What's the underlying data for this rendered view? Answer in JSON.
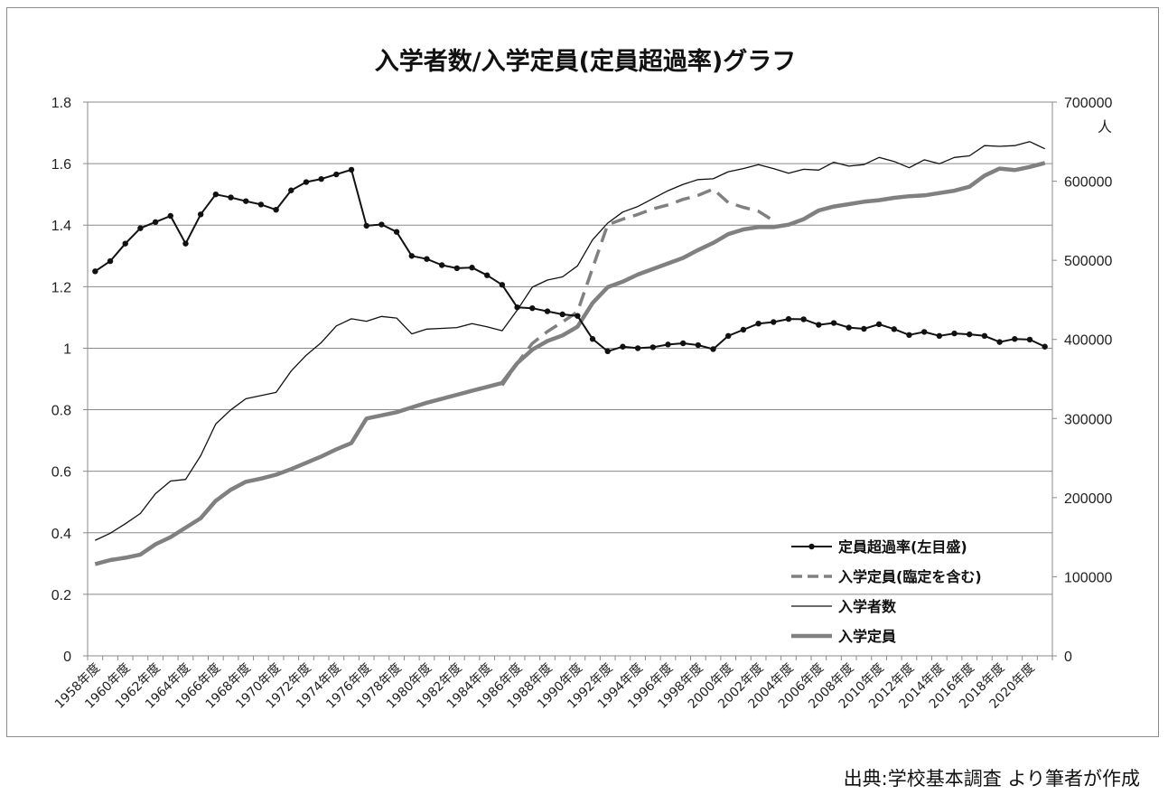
{
  "source_note": "出典:学校基本調査 より筆者が作成",
  "chart_data": {
    "type": "line",
    "title": "入学者数/入学定員(定員超過率)グラフ",
    "y_left": {
      "ylim": [
        0,
        1.8
      ],
      "ticks": [
        "0",
        "0.2",
        "0.4",
        "0.6",
        "0.8",
        "1",
        "1.2",
        "1.4",
        "1.6",
        "1.8"
      ]
    },
    "y_right": {
      "ylim": [
        0,
        700000
      ],
      "unit": "人",
      "ticks": [
        "0",
        "100000",
        "200000",
        "300000",
        "400000",
        "500000",
        "600000",
        "700000"
      ]
    },
    "x_tick_labels": [
      "1958年度",
      "1960年度",
      "1962年度",
      "1964年度",
      "1966年度",
      "1968年度",
      "1970年度",
      "1972年度",
      "1974年度",
      "1976年度",
      "1978年度",
      "1980年度",
      "1982年度",
      "1984年度",
      "1986年度",
      "1988年度",
      "1990年度",
      "1992年度",
      "1994年度",
      "1996年度",
      "1998年度",
      "2000年度",
      "2002年度",
      "2004年度",
      "2006年度",
      "2008年度",
      "2010年度",
      "2012年度",
      "2014年度",
      "2016年度",
      "2018年度",
      "2020年度"
    ],
    "x_years": [
      1958,
      1959,
      1960,
      1961,
      1962,
      1963,
      1964,
      1965,
      1966,
      1967,
      1968,
      1969,
      1970,
      1971,
      1972,
      1973,
      1974,
      1975,
      1976,
      1977,
      1978,
      1979,
      1980,
      1981,
      1982,
      1983,
      1984,
      1985,
      1986,
      1987,
      1988,
      1989,
      1990,
      1991,
      1992,
      1993,
      1994,
      1995,
      1996,
      1997,
      1998,
      1999,
      2000,
      2001,
      2002,
      2003,
      2004,
      2005,
      2006,
      2007,
      2008,
      2009,
      2010,
      2011,
      2012,
      2013,
      2014,
      2015,
      2016,
      2017,
      2018,
      2019,
      2020,
      2021
    ],
    "grid": true,
    "legend_position": "bottom-right",
    "series": [
      {
        "name": "定員超過率(左目盛)",
        "axis": "left",
        "style": "line-marker",
        "color": "#111111",
        "start_year": 1958,
        "values": [
          1.25,
          1.283,
          1.34,
          1.39,
          1.41,
          1.43,
          1.34,
          1.435,
          1.5,
          1.49,
          1.478,
          1.467,
          1.45,
          1.513,
          1.54,
          1.55,
          1.565,
          1.58,
          1.398,
          1.402,
          1.378,
          1.3,
          1.29,
          1.27,
          1.26,
          1.262,
          1.237,
          1.206,
          1.133,
          1.13,
          1.12,
          1.11,
          1.105,
          1.03,
          0.99,
          1.005,
          1.0,
          1.003,
          1.012,
          1.016,
          1.01,
          0.997,
          1.04,
          1.06,
          1.08,
          1.085,
          1.095,
          1.094,
          1.076,
          1.082,
          1.067,
          1.063,
          1.078,
          1.062,
          1.043,
          1.053,
          1.04,
          1.048,
          1.045,
          1.04,
          1.02,
          1.03,
          1.028,
          1.005
        ]
      },
      {
        "name": "入学定員(臨定を含む)",
        "axis": "right",
        "style": "dashed",
        "color": "#808080",
        "start_year": 1985,
        "values": [
          342000,
          370000,
          395000,
          410000,
          422000,
          435000,
          490000,
          545000,
          552000,
          558000,
          565000,
          570000,
          577000,
          582000,
          590000,
          573000,
          567000,
          562000,
          550000
        ]
      },
      {
        "name": "入学者数",
        "axis": "right",
        "style": "thin",
        "color": "#111111",
        "start_year": 1958,
        "values": [
          146000,
          155000,
          167000,
          180000,
          205000,
          221000,
          223000,
          253000,
          293000,
          311000,
          325000,
          329000,
          333000,
          360000,
          380000,
          396000,
          417000,
          426000,
          423000,
          429000,
          427000,
          407000,
          413000,
          414000,
          415000,
          420000,
          416000,
          411000,
          437000,
          466000,
          475000,
          479000,
          493000,
          526000,
          547000,
          561000,
          568000,
          578000,
          588000,
          596000,
          602000,
          603000,
          612000,
          616000,
          621000,
          616000,
          610000,
          615000,
          614000,
          624000,
          619000,
          621000,
          630000,
          625000,
          617000,
          627000,
          622000,
          630000,
          632000,
          645000,
          644000,
          645000,
          650000,
          641000
        ]
      },
      {
        "name": "入学定員",
        "axis": "right",
        "style": "thick",
        "color": "#808080",
        "start_year": 1958,
        "values": [
          116000,
          121000,
          124000,
          128000,
          141000,
          150000,
          162000,
          174000,
          196000,
          210000,
          220000,
          224000,
          229000,
          236000,
          244000,
          252000,
          261000,
          269000,
          300000,
          304000,
          308000,
          314000,
          320000,
          325000,
          330000,
          335000,
          340000,
          345000,
          370000,
          387000,
          398000,
          405000,
          416000,
          446000,
          466000,
          473000,
          482000,
          489000,
          496000,
          503000,
          513000,
          522000,
          533000,
          539000,
          542000,
          542000,
          545000,
          552000,
          563000,
          568000,
          571000,
          574000,
          576000,
          579000,
          581000,
          582000,
          585000,
          588000,
          593000,
          607000,
          616000,
          614000,
          618000,
          623000
        ]
      }
    ]
  }
}
